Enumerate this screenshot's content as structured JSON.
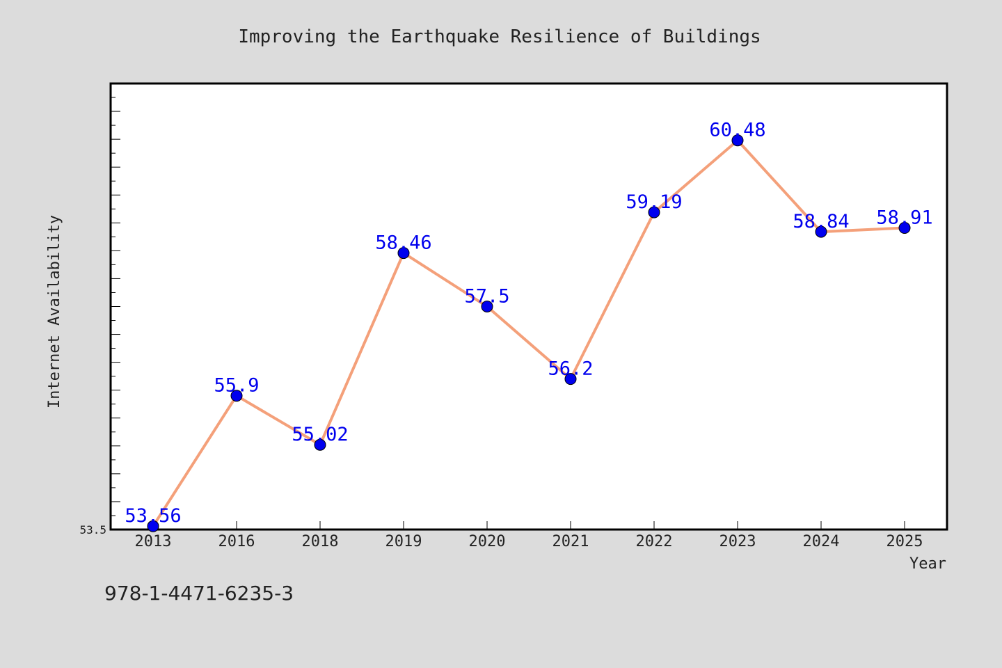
{
  "chart_data": {
    "type": "line",
    "title": "Improving the Earthquake Resilience of Buildings",
    "xlabel": "Year",
    "ylabel": "Internet Availability",
    "categories": [
      "2013",
      "2016",
      "2018",
      "2019",
      "2020",
      "2021",
      "2022",
      "2023",
      "2024",
      "2025"
    ],
    "values": [
      53.56,
      55.9,
      55.02,
      58.46,
      57.5,
      56.2,
      59.19,
      60.48,
      58.84,
      58.91
    ],
    "data_labels": [
      "53.56",
      "55.9",
      "55.02",
      "58.46",
      "57.5",
      "56.2",
      "59.19",
      "60.48",
      "58.84",
      "58.91"
    ],
    "y_tick_labels": [
      "53.5"
    ],
    "ylim": [
      53.5,
      61.5
    ],
    "grid": false,
    "legend": "none",
    "colors": {
      "line": "#f4a07a",
      "marker": "#0000ee",
      "data_label": "#0000ee",
      "background": "#dcdcdc",
      "plot_background": "#ffffff"
    }
  },
  "footer_note": "978-1-4471-6235-3"
}
